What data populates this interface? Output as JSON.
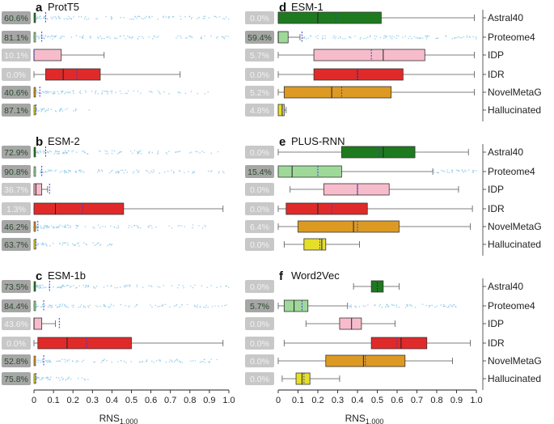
{
  "figure": {
    "x_axis_label": "RNS",
    "x_axis_label_subscript": "1,000",
    "x_ticks": [
      "0",
      "0.1",
      "0.2",
      "0.3",
      "0.4",
      "0.5",
      "0.6",
      "0.7",
      "0.8",
      "0.9",
      "1.0"
    ],
    "categories": [
      "Astral40",
      "Proteome4",
      "IDP",
      "IDR",
      "NovelMetaG",
      "Hallucinated"
    ]
  },
  "colors": {
    "Astral40": "#1e7a1e",
    "Proteome4": "#9fd99a",
    "IDP": "#f7bccb",
    "IDR": "#e02a2a",
    "NovelMetaG": "#dd9a22",
    "Hallucinated": "#e6df2a",
    "points": "#8cc8e8",
    "mean_line": "#3a3ad0",
    "label_box_dark": "#a6a6a6",
    "label_box_light": "#c8c8c8"
  },
  "chart_data": [
    {
      "type": "box",
      "panel": "a",
      "title": "ProtT5",
      "xlim": [
        0,
        1
      ],
      "rows": [
        {
          "category": "Astral40",
          "percent": "60.6%",
          "box": null,
          "mean": 0.06,
          "spread": [
            0,
            1
          ]
        },
        {
          "category": "Proteome4",
          "percent": "81.1%",
          "box": null,
          "mean": 0.04,
          "spread": [
            0,
            1
          ]
        },
        {
          "category": "IDP",
          "percent": "10.1%",
          "box": {
            "whisker_low": 0.0,
            "q1": 0.0,
            "median": 0.0,
            "q3": 0.14,
            "whisker_high": 0.36
          },
          "mean": 0.0
        },
        {
          "category": "IDR",
          "percent": "0.0%",
          "box": {
            "whisker_low": 0.0,
            "q1": 0.06,
            "median": 0.15,
            "q3": 0.34,
            "whisker_high": 0.75
          },
          "mean": 0.22
        },
        {
          "category": "NovelMetaG",
          "percent": "40.6%",
          "box": null,
          "mean": 0.03,
          "spread": [
            0,
            0.9
          ]
        },
        {
          "category": "Hallucinated",
          "percent": "87.1%",
          "box": null,
          "mean": 0.01,
          "spread": [
            0,
            0.3
          ]
        }
      ]
    },
    {
      "type": "box",
      "panel": "b",
      "title": "ESM-2",
      "xlim": [
        0,
        1
      ],
      "rows": [
        {
          "category": "Astral40",
          "percent": "72.9%",
          "box": null,
          "mean": 0.06,
          "spread": [
            0,
            1
          ]
        },
        {
          "category": "Proteome4",
          "percent": "90.8%",
          "box": null,
          "mean": 0.04,
          "spread": [
            0,
            1
          ]
        },
        {
          "category": "IDP",
          "percent": "36.7%",
          "box": {
            "whisker_low": 0.0,
            "q1": 0.0,
            "median": 0.01,
            "q3": 0.04,
            "whisker_high": 0.07
          },
          "mean": 0.08
        },
        {
          "category": "IDR",
          "percent": "1.3%",
          "box": {
            "whisker_low": 0.0,
            "q1": 0.0,
            "median": 0.11,
            "q3": 0.46,
            "whisker_high": 0.97
          },
          "mean": 0.25
        },
        {
          "category": "NovelMetaG",
          "percent": "46.2%",
          "box": null,
          "mean": 0.02,
          "spread": [
            0,
            0.9
          ]
        },
        {
          "category": "Hallucinated",
          "percent": "63.7%",
          "box": null,
          "mean": 0.01,
          "spread": [
            0,
            0.4
          ]
        }
      ]
    },
    {
      "type": "box",
      "panel": "c",
      "title": "ESM-1b",
      "xlim": [
        0,
        1
      ],
      "rows": [
        {
          "category": "Astral40",
          "percent": "73.5%",
          "box": null,
          "mean": 0.08,
          "spread": [
            0,
            1
          ]
        },
        {
          "category": "Proteome4",
          "percent": "84.4%",
          "box": null,
          "mean": 0.05,
          "spread": [
            0,
            1
          ]
        },
        {
          "category": "IDP",
          "percent": "43.6%",
          "box": {
            "whisker_low": 0.0,
            "q1": 0.0,
            "median": 0.0,
            "q3": 0.04,
            "whisker_high": 0.11
          },
          "mean": 0.13
        },
        {
          "category": "IDR",
          "percent": "0.0%",
          "box": {
            "whisker_low": 0.0,
            "q1": 0.02,
            "median": 0.17,
            "q3": 0.5,
            "whisker_high": 0.97
          },
          "mean": 0.27
        },
        {
          "category": "NovelMetaG",
          "percent": "52.8%",
          "box": null,
          "mean": 0.05,
          "spread": [
            0,
            0.95
          ]
        },
        {
          "category": "Hallucinated",
          "percent": "75.8%",
          "box": null,
          "mean": 0.01,
          "spread": [
            0,
            0.3
          ]
        }
      ]
    },
    {
      "type": "box",
      "panel": "d",
      "title": "ESM-1",
      "xlim": [
        0,
        1
      ],
      "rows": [
        {
          "category": "Astral40",
          "percent": "0.0%",
          "box": {
            "whisker_low": 0.0,
            "q1": 0.0,
            "median": 0.2,
            "q3": 0.52,
            "whisker_high": 0.99
          },
          "mean": 0.29
        },
        {
          "category": "Proteome4",
          "percent": "59.4%",
          "box": {
            "whisker_low": 0.0,
            "q1": 0.0,
            "median": 0.0,
            "q3": 0.05,
            "whisker_high": 0.11
          },
          "mean": 0.12,
          "spread": [
            0.11,
            1
          ]
        },
        {
          "category": "IDP",
          "percent": "5.7%",
          "box": {
            "whisker_low": 0.0,
            "q1": 0.18,
            "median": 0.53,
            "q3": 0.74,
            "whisker_high": 0.99
          },
          "mean": 0.47
        },
        {
          "category": "IDR",
          "percent": "0.0%",
          "box": {
            "whisker_low": 0.0,
            "q1": 0.18,
            "median": 0.4,
            "q3": 0.63,
            "whisker_high": 0.99
          },
          "mean": 0.4
        },
        {
          "category": "NovelMetaG",
          "percent": "5.2%",
          "box": {
            "whisker_low": 0.0,
            "q1": 0.03,
            "median": 0.27,
            "q3": 0.57,
            "whisker_high": 0.99
          },
          "mean": 0.32
        },
        {
          "category": "Hallucinated",
          "percent": "4.8%",
          "box": {
            "whisker_low": 0.0,
            "q1": 0.0,
            "median": 0.02,
            "q3": 0.03,
            "whisker_high": 0.04
          },
          "mean": 0.02
        }
      ]
    },
    {
      "type": "box",
      "panel": "e",
      "title": "PLUS-RNN",
      "xlim": [
        0,
        1
      ],
      "rows": [
        {
          "category": "Astral40",
          "percent": "0.0%",
          "box": {
            "whisker_low": 0.0,
            "q1": 0.32,
            "median": 0.53,
            "q3": 0.69,
            "whisker_high": 0.96
          },
          "mean": 0.51
        },
        {
          "category": "Proteome4",
          "percent": "15.4%",
          "box": {
            "whisker_low": 0.0,
            "q1": 0.0,
            "median": 0.07,
            "q3": 0.32,
            "whisker_high": 0.78
          },
          "mean": 0.2,
          "spread": [
            0.78,
            1
          ]
        },
        {
          "category": "IDP",
          "percent": "0.0%",
          "box": {
            "whisker_low": 0.06,
            "q1": 0.23,
            "median": 0.4,
            "q3": 0.56,
            "whisker_high": 0.91
          },
          "mean": 0.4
        },
        {
          "category": "IDR",
          "percent": "0.0%",
          "box": {
            "whisker_low": 0.0,
            "q1": 0.04,
            "median": 0.2,
            "q3": 0.45,
            "whisker_high": 0.98
          },
          "mean": 0.27
        },
        {
          "category": "NovelMetaG",
          "percent": "6.4%",
          "box": {
            "whisker_low": 0.0,
            "q1": 0.1,
            "median": 0.38,
            "q3": 0.61,
            "whisker_high": 0.97
          },
          "mean": 0.4
        },
        {
          "category": "Hallucinated",
          "percent": "0.0%",
          "box": {
            "whisker_low": 0.03,
            "q1": 0.13,
            "median": 0.22,
            "q3": 0.24,
            "whisker_high": 0.41
          },
          "mean": 0.21
        }
      ]
    },
    {
      "type": "box",
      "panel": "f",
      "title": "Word2Vec",
      "xlim": [
        0,
        1
      ],
      "rows": [
        {
          "category": "Astral40",
          "percent": "0.0%",
          "box": {
            "whisker_low": 0.38,
            "q1": 0.47,
            "median": 0.5,
            "q3": 0.53,
            "whisker_high": 0.61
          },
          "mean": 0.5
        },
        {
          "category": "Proteome4",
          "percent": "5.7%",
          "box": {
            "whisker_low": 0.0,
            "q1": 0.03,
            "median": 0.08,
            "q3": 0.15,
            "whisker_high": 0.35
          },
          "mean": 0.12,
          "spread": [
            0.35,
            0.9
          ]
        },
        {
          "category": "IDP",
          "percent": "0.0%",
          "box": {
            "whisker_low": 0.14,
            "q1": 0.31,
            "median": 0.37,
            "q3": 0.42,
            "whisker_high": 0.59
          },
          "mean": 0.37
        },
        {
          "category": "IDR",
          "percent": "0.0%",
          "box": {
            "whisker_low": 0.03,
            "q1": 0.47,
            "median": 0.62,
            "q3": 0.75,
            "whisker_high": 0.97
          },
          "mean": 0.6
        },
        {
          "category": "NovelMetaG",
          "percent": "0.0%",
          "box": {
            "whisker_low": 0.0,
            "q1": 0.24,
            "median": 0.43,
            "q3": 0.64,
            "whisker_high": 0.88
          },
          "mean": 0.44
        },
        {
          "category": "Hallucinated",
          "percent": "0.0%",
          "box": {
            "whisker_low": 0.02,
            "q1": 0.09,
            "median": 0.12,
            "q3": 0.16,
            "whisker_high": 0.31
          },
          "mean": 0.13
        }
      ]
    }
  ]
}
